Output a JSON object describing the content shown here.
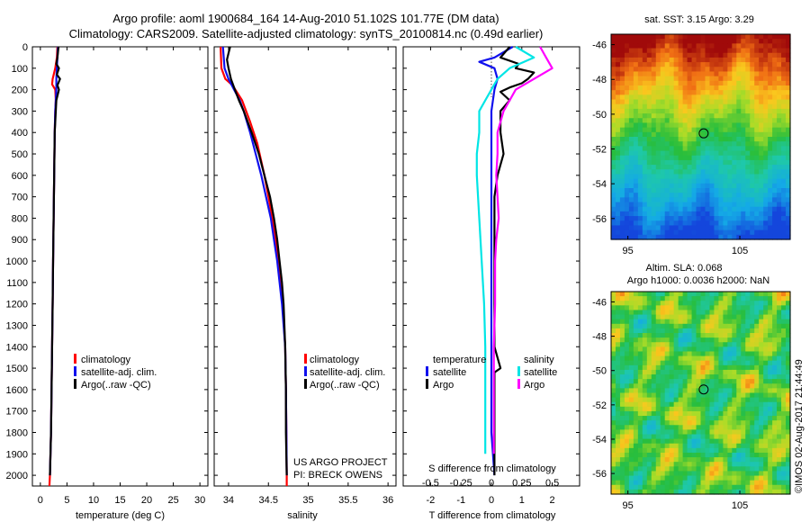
{
  "header": {
    "title_line1": "Argo profile: aoml 1900684_164 14-Aug-2010 51.102S 101.77E (DM data)",
    "title_line2": "Climatology: CARS2009. Satellite-adjusted climatology: synTS_20100814.nc (0.49d earlier)"
  },
  "colors": {
    "climatology": "#ff0000",
    "satellite_clim": "#1010ee",
    "argo": "#000000",
    "s_satellite": "#00e5e5",
    "s_argo": "#ff00ff"
  },
  "chart_data": [
    {
      "type": "line",
      "panel": "temperature",
      "xlabel": "temperature (deg C)",
      "ylabel": "",
      "xlim": [
        -1.5,
        31.5
      ],
      "ylim": [
        2050,
        0
      ],
      "xticks": [
        "0",
        "5",
        "10",
        "15",
        "20",
        "25",
        "30"
      ],
      "yticks": [
        "0",
        "100",
        "200",
        "300",
        "400",
        "500",
        "600",
        "700",
        "800",
        "900",
        "1000",
        "1100",
        "1200",
        "1300",
        "1400",
        "1500",
        "1600",
        "1700",
        "1800",
        "1900",
        "2000"
      ],
      "legend": [
        "climatology",
        "satellite-adj. clim.",
        "Argo(..raw -QC)"
      ],
      "series": [
        {
          "name": "climatology",
          "color": "#ff0000",
          "y": [
            0,
            50,
            100,
            150,
            175,
            200,
            250,
            300,
            400,
            600,
            800,
            1000,
            1200,
            1400,
            1600,
            1800,
            2000,
            2050
          ],
          "x": [
            3.2,
            3.1,
            2.8,
            2.3,
            2.2,
            2.8,
            2.9,
            2.8,
            2.7,
            2.6,
            2.5,
            2.4,
            2.3,
            2.2,
            2.1,
            2.0,
            1.8,
            1.7
          ]
        },
        {
          "name": "satellite-adj. clim.",
          "color": "#1010ee",
          "y": [
            0,
            50,
            100,
            150,
            200,
            250,
            300,
            400,
            600,
            800,
            1000,
            1200,
            1400,
            1600,
            1800,
            2000
          ],
          "x": [
            3.3,
            3.2,
            3.1,
            3.0,
            3.0,
            2.9,
            2.8,
            2.7,
            2.6,
            2.5,
            2.4,
            2.3,
            2.2,
            2.1,
            2.0,
            1.8
          ]
        },
        {
          "name": "Argo(..raw -QC)",
          "color": "#000000",
          "y": [
            0,
            50,
            80,
            100,
            130,
            150,
            180,
            200,
            250,
            300,
            400,
            600,
            800,
            1000,
            1200,
            1400,
            1600,
            1800,
            2000
          ],
          "x": [
            3.4,
            3.2,
            3.0,
            3.5,
            3.1,
            3.7,
            3.2,
            3.5,
            3.0,
            2.9,
            2.7,
            2.6,
            2.5,
            2.4,
            2.3,
            2.2,
            2.1,
            2.0,
            1.8
          ]
        }
      ]
    },
    {
      "type": "line",
      "panel": "salinity",
      "xlabel": "salinity",
      "ylabel": "",
      "xlim": [
        33.82,
        36.1
      ],
      "ylim": [
        2050,
        0
      ],
      "xticks": [
        "34",
        "34.5",
        "35",
        "35.5",
        "36"
      ],
      "legend": [
        "climatology",
        "satellite-adj. clim.",
        "Argo(..raw -QC)"
      ],
      "annotation": [
        "US ARGO PROJECT",
        "PI: BRECK OWENS"
      ],
      "series": [
        {
          "name": "climatology",
          "color": "#ff0000",
          "y": [
            0,
            100,
            150,
            180,
            250,
            350,
            450,
            600,
            800,
            1000,
            1200,
            1400,
            1600,
            1800,
            2000,
            2050
          ],
          "x": [
            33.9,
            33.91,
            33.96,
            34.05,
            34.17,
            34.27,
            34.36,
            34.45,
            34.55,
            34.63,
            34.68,
            34.71,
            34.72,
            34.725,
            34.73,
            34.73
          ]
        },
        {
          "name": "satellite-adj. clim.",
          "color": "#1010ee",
          "y": [
            0,
            50,
            100,
            150,
            200,
            250,
            300,
            400,
            500,
            600,
            700,
            800,
            900,
            1000,
            1200,
            1400,
            1600,
            1800,
            2000
          ],
          "x": [
            33.93,
            33.94,
            33.95,
            34.0,
            34.07,
            34.14,
            34.19,
            34.27,
            34.34,
            34.41,
            34.47,
            34.53,
            34.57,
            34.61,
            34.67,
            34.71,
            34.72,
            34.725,
            34.73
          ]
        },
        {
          "name": "Argo(..raw -QC)",
          "color": "#000000",
          "y": [
            0,
            30,
            60,
            100,
            150,
            200,
            250,
            300,
            400,
            500,
            600,
            700,
            800,
            900,
            1000,
            1100,
            1200,
            1400,
            1600,
            1800,
            2000
          ],
          "x": [
            34.02,
            34.0,
            33.98,
            34.0,
            34.03,
            34.08,
            34.13,
            34.19,
            34.29,
            34.38,
            34.45,
            34.52,
            34.57,
            34.61,
            34.64,
            34.67,
            34.69,
            34.71,
            34.72,
            34.72,
            34.73
          ]
        }
      ]
    },
    {
      "type": "line",
      "panel": "difference",
      "xlabel": "T difference from climatology",
      "x2label": "S difference from climatology",
      "xlim": [
        -2.9,
        2.9
      ],
      "ylim": [
        2050,
        0
      ],
      "xticks": [
        "-2",
        "-1",
        "0",
        "1",
        "2"
      ],
      "x2ticks": [
        "-0.5",
        "-0.25",
        "0",
        "0.25",
        "0.5"
      ],
      "legend_titles": [
        "temperature",
        "salinity"
      ],
      "legend": [
        "satellite",
        "Argo",
        "satellite",
        "Argo"
      ],
      "series": [
        {
          "name": "satellite",
          "quantity": "temperature",
          "color": "#1010ee",
          "y": [
            0,
            50,
            70,
            100,
            150,
            200,
            250,
            300,
            400,
            600,
            800,
            1000,
            1200,
            1400,
            1600,
            1800,
            2000
          ],
          "x": [
            0.7,
            0.1,
            -0.4,
            0.1,
            0.2,
            0.1,
            0.05,
            0.0,
            0.0,
            0.0,
            0.0,
            0.0,
            0.0,
            0.0,
            0.0,
            0.0,
            0.1
          ]
        },
        {
          "name": "Argo",
          "quantity": "temperature",
          "color": "#000000",
          "y": [
            0,
            50,
            80,
            100,
            120,
            150,
            170,
            190,
            210,
            250,
            300,
            400,
            500,
            600,
            700,
            800,
            1000,
            1200,
            1400,
            1500,
            1520,
            1600,
            1800,
            2000
          ],
          "x": [
            0.6,
            0.3,
            0.9,
            0.8,
            1.4,
            1.2,
            1.0,
            0.6,
            0.3,
            0.6,
            0.3,
            0.3,
            0.4,
            0.2,
            0.1,
            0.1,
            0.1,
            0.1,
            0.1,
            0.3,
            0.1,
            0.1,
            0.1,
            0.1
          ]
        },
        {
          "name": "satellite",
          "quantity": "salinity",
          "color": "#00e5e5",
          "y": [
            0,
            50,
            100,
            150,
            200,
            250,
            300,
            400,
            500,
            600,
            800,
            1000,
            1200,
            1400,
            1600,
            1800,
            1900
          ],
          "x": [
            0.2,
            0.35,
            0.15,
            0.05,
            0.0,
            -0.05,
            -0.1,
            -0.1,
            -0.12,
            -0.12,
            -0.1,
            -0.08,
            -0.06,
            -0.05,
            -0.05,
            -0.05,
            -0.05
          ]
        },
        {
          "name": "Argo",
          "quantity": "salinity",
          "color": "#ff00ff",
          "y": [
            0,
            50,
            100,
            150,
            200,
            250,
            300,
            400,
            500,
            600,
            700,
            800,
            900,
            1000,
            1200,
            1400,
            1600,
            1800,
            1900
          ],
          "x": [
            0.4,
            0.45,
            0.5,
            0.35,
            0.2,
            0.15,
            0.1,
            0.05,
            0.05,
            0.04,
            0.05,
            0.06,
            0.04,
            0.03,
            0.03,
            0.02,
            0.02,
            0.02,
            0.02
          ]
        }
      ]
    },
    {
      "type": "heatmap",
      "panel": "sst_map",
      "title": "sat. SST: 3.15 Argo: 3.29",
      "xticks": [
        "95",
        "105"
      ],
      "yticks": [
        "-46",
        "-48",
        "-50",
        "-52",
        "-54",
        "-56"
      ],
      "xlim": [
        93.5,
        109.5
      ],
      "ylim": [
        -57.2,
        -45.4
      ],
      "marker": {
        "lon": 101.77,
        "lat": -51.102
      }
    },
    {
      "type": "heatmap",
      "panel": "sla_map",
      "title": "Altim. SLA: 0.068",
      "subtitle": "Argo h1000: 0.0036 h2000: NaN",
      "xticks": [
        "95",
        "105"
      ],
      "yticks": [
        "-46",
        "-48",
        "-50",
        "-52",
        "-54",
        "-56"
      ],
      "xlim": [
        93.5,
        109.5
      ],
      "ylim": [
        -57.2,
        -45.4
      ],
      "marker": {
        "lon": 101.77,
        "lat": -51.102
      }
    }
  ],
  "footer": {
    "credit": "©IMOS 02-Aug-2017 21:44:49"
  }
}
